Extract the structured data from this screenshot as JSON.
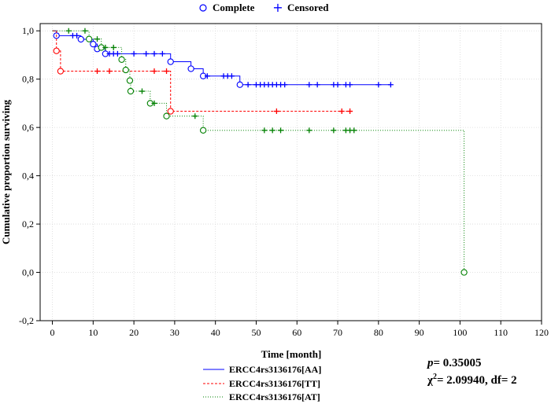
{
  "chart_data": {
    "type": "line",
    "title": "",
    "xlabel": "Time [month]",
    "ylabel": "Cumulative proportion surviving",
    "xlim": [
      -3,
      120
    ],
    "ylim": [
      -0.2,
      1.03
    ],
    "x_ticks": [
      0,
      10,
      20,
      30,
      40,
      50,
      60,
      70,
      80,
      90,
      100,
      110,
      120
    ],
    "x_tick_labels": [
      "0",
      "10",
      "20",
      "30",
      "40",
      "50",
      "60",
      "70",
      "80",
      "90",
      "100",
      "110",
      "120"
    ],
    "y_ticks": [
      -0.2,
      0.0,
      0.2,
      0.4,
      0.6,
      0.8,
      1.0
    ],
    "y_tick_labels": [
      "-0,2",
      "0,0",
      "0,2",
      "0,4",
      "0,6",
      "0,8",
      "1,0"
    ],
    "grid": true,
    "legend_top": {
      "complete_label": "Complete",
      "censored_label": "Censored",
      "placement": "top-center"
    },
    "series": [
      {
        "name": "ERCC4rs3136176[AA]",
        "color": "#0000ff",
        "dash": "solid",
        "steps": [
          [
            0,
            1.0
          ],
          [
            1,
            0.98
          ],
          [
            7,
            0.965
          ],
          [
            10,
            0.945
          ],
          [
            11,
            0.925
          ],
          [
            13,
            0.905
          ],
          [
            29,
            0.872
          ],
          [
            34,
            0.843
          ],
          [
            37,
            0.813
          ],
          [
            46,
            0.777
          ],
          [
            83,
            0.777
          ]
        ],
        "events": [
          [
            1,
            0.98
          ],
          [
            7,
            0.965
          ],
          [
            10,
            0.945
          ],
          [
            11,
            0.925
          ],
          [
            13,
            0.905
          ],
          [
            29,
            0.872
          ],
          [
            34,
            0.843
          ],
          [
            37,
            0.813
          ],
          [
            46,
            0.777
          ]
        ],
        "censored": [
          [
            5,
            0.98
          ],
          [
            6,
            0.98
          ],
          [
            14,
            0.905
          ],
          [
            15,
            0.905
          ],
          [
            16,
            0.905
          ],
          [
            20,
            0.905
          ],
          [
            23,
            0.905
          ],
          [
            25,
            0.905
          ],
          [
            27,
            0.905
          ],
          [
            38,
            0.813
          ],
          [
            42,
            0.813
          ],
          [
            43,
            0.813
          ],
          [
            44,
            0.813
          ],
          [
            48,
            0.777
          ],
          [
            50,
            0.777
          ],
          [
            51,
            0.777
          ],
          [
            52,
            0.777
          ],
          [
            53,
            0.777
          ],
          [
            54,
            0.777
          ],
          [
            55,
            0.777
          ],
          [
            56,
            0.777
          ],
          [
            57,
            0.777
          ],
          [
            63,
            0.777
          ],
          [
            65,
            0.777
          ],
          [
            69,
            0.777
          ],
          [
            70,
            0.777
          ],
          [
            72,
            0.777
          ],
          [
            73,
            0.777
          ],
          [
            80,
            0.777
          ],
          [
            83,
            0.777
          ]
        ]
      },
      {
        "name": "ERCC4rs3136176[TT]",
        "color": "#ff0000",
        "dash": "3,2",
        "steps": [
          [
            0,
            1.0
          ],
          [
            1,
            0.917
          ],
          [
            2,
            0.833
          ],
          [
            29,
            0.667
          ],
          [
            73,
            0.667
          ]
        ],
        "events": [
          [
            1,
            0.917
          ],
          [
            2,
            0.833
          ],
          [
            29,
            0.667
          ]
        ],
        "censored": [
          [
            11,
            0.833
          ],
          [
            14,
            0.833
          ],
          [
            25,
            0.833
          ],
          [
            28,
            0.833
          ],
          [
            55,
            0.667
          ],
          [
            71,
            0.667
          ],
          [
            73,
            0.667
          ]
        ]
      },
      {
        "name": "ERCC4rs3136176[AT]",
        "color": "#008000",
        "dash": "1,2",
        "steps": [
          [
            0,
            1.0
          ],
          [
            9,
            0.966
          ],
          [
            12,
            0.931
          ],
          [
            17,
            0.881
          ],
          [
            18,
            0.838
          ],
          [
            19,
            0.794
          ],
          [
            19.2,
            0.75
          ],
          [
            24,
            0.7
          ],
          [
            28,
            0.647
          ],
          [
            37,
            0.588
          ],
          [
            101,
            0.588
          ],
          [
            101,
            0.0
          ]
        ],
        "events": [
          [
            9,
            0.966
          ],
          [
            12,
            0.931
          ],
          [
            17,
            0.881
          ],
          [
            18,
            0.838
          ],
          [
            19,
            0.794
          ],
          [
            19.2,
            0.75
          ],
          [
            24,
            0.7
          ],
          [
            28,
            0.647
          ],
          [
            37,
            0.588
          ],
          [
            101,
            0.0
          ]
        ],
        "censored": [
          [
            4,
            1.0
          ],
          [
            8,
            1.0
          ],
          [
            11,
            0.966
          ],
          [
            13,
            0.931
          ],
          [
            15,
            0.931
          ],
          [
            22,
            0.75
          ],
          [
            25,
            0.7
          ],
          [
            35,
            0.647
          ],
          [
            52,
            0.588
          ],
          [
            54,
            0.588
          ],
          [
            56,
            0.588
          ],
          [
            63,
            0.588
          ],
          [
            69,
            0.588
          ],
          [
            72,
            0.588
          ],
          [
            73,
            0.588
          ],
          [
            74,
            0.588
          ]
        ]
      }
    ],
    "annotation": {
      "p_label": "p",
      "p_value": "= 0.35005",
      "chi_label": "χ",
      "chi_sup": "2",
      "chi_value": "= 2.09940, df= 2"
    }
  }
}
